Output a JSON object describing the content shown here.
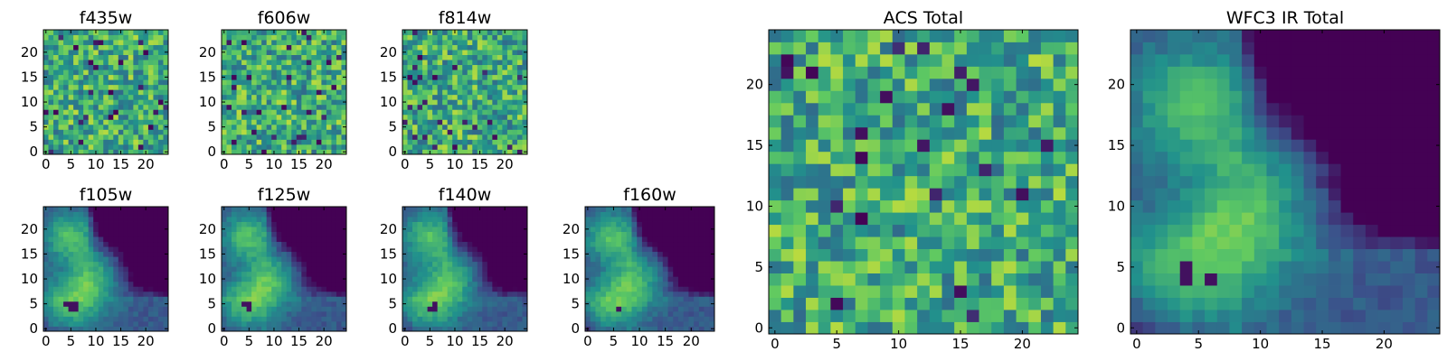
{
  "figure": {
    "colormap": "viridis",
    "colormap_stops": [
      "#440154",
      "#3b528b",
      "#21918c",
      "#5ec962",
      "#fde725"
    ]
  },
  "chart_data": [
    {
      "type": "heatmap",
      "title": "f435w",
      "grid": [
        25,
        25
      ],
      "pattern": "noise",
      "xticks": [
        "0",
        "5",
        "10",
        "15",
        "20"
      ],
      "yticks": [
        "0",
        "5",
        "10",
        "15",
        "20"
      ],
      "xlim": [
        -0.5,
        24.5
      ],
      "ylim": [
        -0.5,
        24.5
      ]
    },
    {
      "type": "heatmap",
      "title": "f606w",
      "grid": [
        25,
        25
      ],
      "pattern": "noise",
      "xticks": [
        "0",
        "5",
        "10",
        "15",
        "20"
      ],
      "yticks": [
        "0",
        "5",
        "10",
        "15",
        "20"
      ],
      "xlim": [
        -0.5,
        24.5
      ],
      "ylim": [
        -0.5,
        24.5
      ]
    },
    {
      "type": "heatmap",
      "title": "f814w",
      "grid": [
        25,
        25
      ],
      "pattern": "noise",
      "xticks": [
        "0",
        "5",
        "10",
        "15",
        "20"
      ],
      "yticks": [
        "0",
        "5",
        "10",
        "15",
        "20"
      ],
      "xlim": [
        -0.5,
        24.5
      ],
      "ylim": [
        -0.5,
        24.5
      ]
    },
    {
      "type": "heatmap",
      "title": "f105w",
      "grid": [
        25,
        25
      ],
      "pattern": "galaxy",
      "xticks": [
        "0",
        "5",
        "10",
        "15",
        "20"
      ],
      "yticks": [
        "0",
        "5",
        "10",
        "15",
        "20"
      ],
      "xlim": [
        -0.5,
        24.5
      ],
      "ylim": [
        -0.5,
        24.5
      ]
    },
    {
      "type": "heatmap",
      "title": "f125w",
      "grid": [
        25,
        25
      ],
      "pattern": "galaxy",
      "xticks": [
        "0",
        "5",
        "10",
        "15",
        "20"
      ],
      "yticks": [
        "0",
        "5",
        "10",
        "15",
        "20"
      ],
      "xlim": [
        -0.5,
        24.5
      ],
      "ylim": [
        -0.5,
        24.5
      ]
    },
    {
      "type": "heatmap",
      "title": "f140w",
      "grid": [
        25,
        25
      ],
      "pattern": "galaxy",
      "xticks": [
        "0",
        "5",
        "10",
        "15",
        "20"
      ],
      "yticks": [
        "0",
        "5",
        "10",
        "15",
        "20"
      ],
      "xlim": [
        -0.5,
        24.5
      ],
      "ylim": [
        -0.5,
        24.5
      ]
    },
    {
      "type": "heatmap",
      "title": "f160w",
      "grid": [
        25,
        25
      ],
      "pattern": "galaxy",
      "xticks": [
        "0",
        "5",
        "10",
        "15",
        "20"
      ],
      "yticks": [
        "0",
        "5",
        "10",
        "15",
        "20"
      ],
      "xlim": [
        -0.5,
        24.5
      ],
      "ylim": [
        -0.5,
        24.5
      ]
    },
    {
      "type": "heatmap",
      "title": "ACS Total",
      "grid": [
        25,
        25
      ],
      "pattern": "noise",
      "xticks": [
        "0",
        "5",
        "10",
        "15",
        "20"
      ],
      "yticks": [
        "0",
        "5",
        "10",
        "15",
        "20"
      ],
      "xlim": [
        -0.5,
        24.5
      ],
      "ylim": [
        -0.5,
        24.5
      ]
    },
    {
      "type": "heatmap",
      "title": "WFC3 IR Total",
      "grid": [
        25,
        25
      ],
      "pattern": "galaxy",
      "xticks": [
        "0",
        "5",
        "10",
        "15",
        "20"
      ],
      "yticks": [
        "0",
        "5",
        "10",
        "15",
        "20"
      ],
      "xlim": [
        -0.5,
        24.5
      ],
      "ylim": [
        -0.5,
        24.5
      ]
    }
  ]
}
